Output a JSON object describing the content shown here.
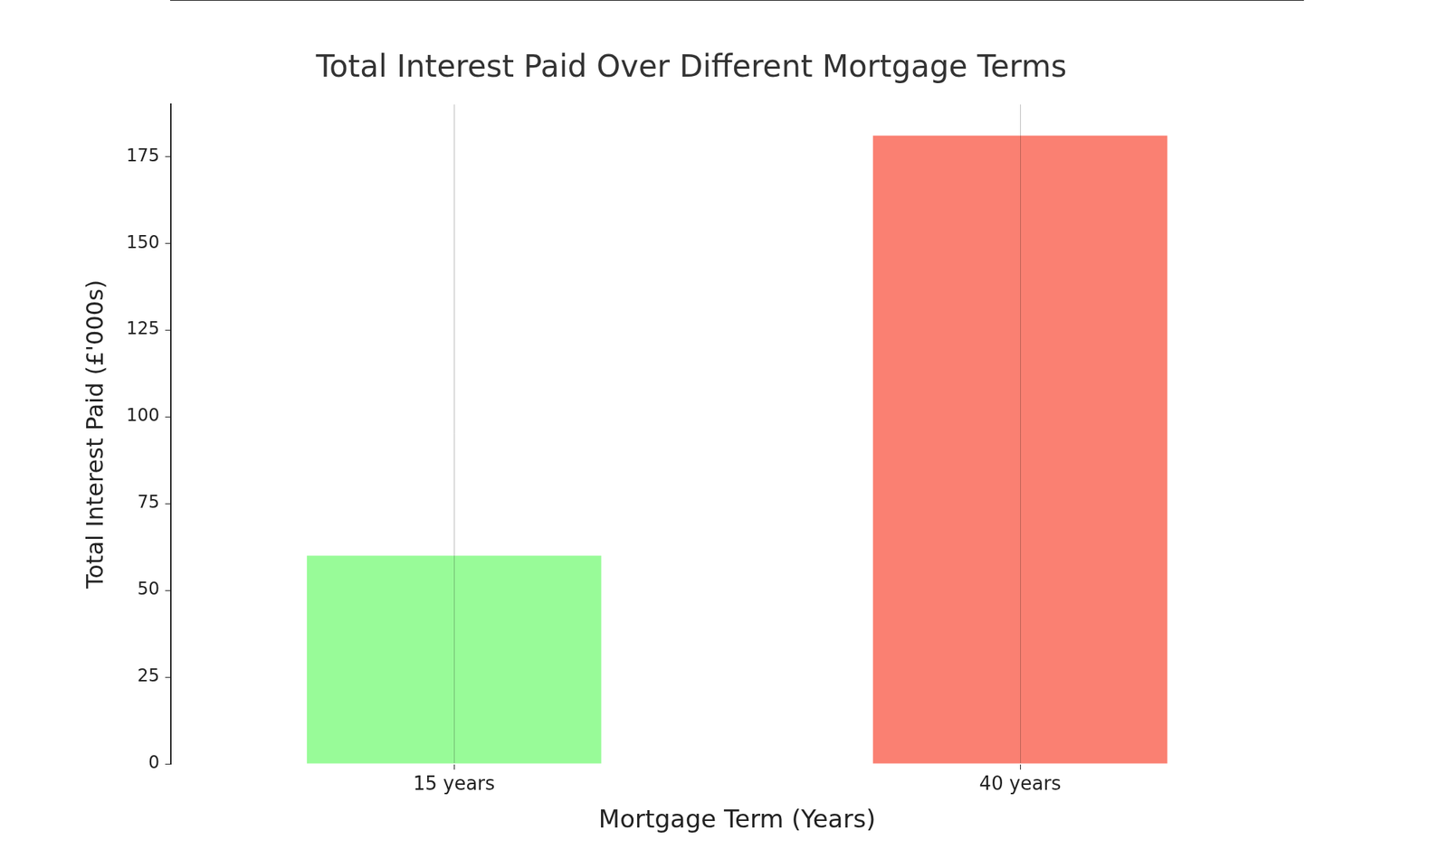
{
  "chart_data": {
    "type": "bar",
    "title": "Total Interest Paid Over Different Mortgage Terms",
    "x_label": "Mortgage Term (Years)",
    "y_label": "Total Interest Paid (£'000s)",
    "categories": [
      "15 years",
      "40 years"
    ],
    "values": [
      60,
      181
    ],
    "colors": [
      "#98fb98",
      "#fa8072"
    ],
    "ylim": [
      0,
      190
    ],
    "yticks": [
      0,
      25,
      50,
      75,
      100,
      125,
      150,
      175
    ],
    "grid": "x"
  }
}
